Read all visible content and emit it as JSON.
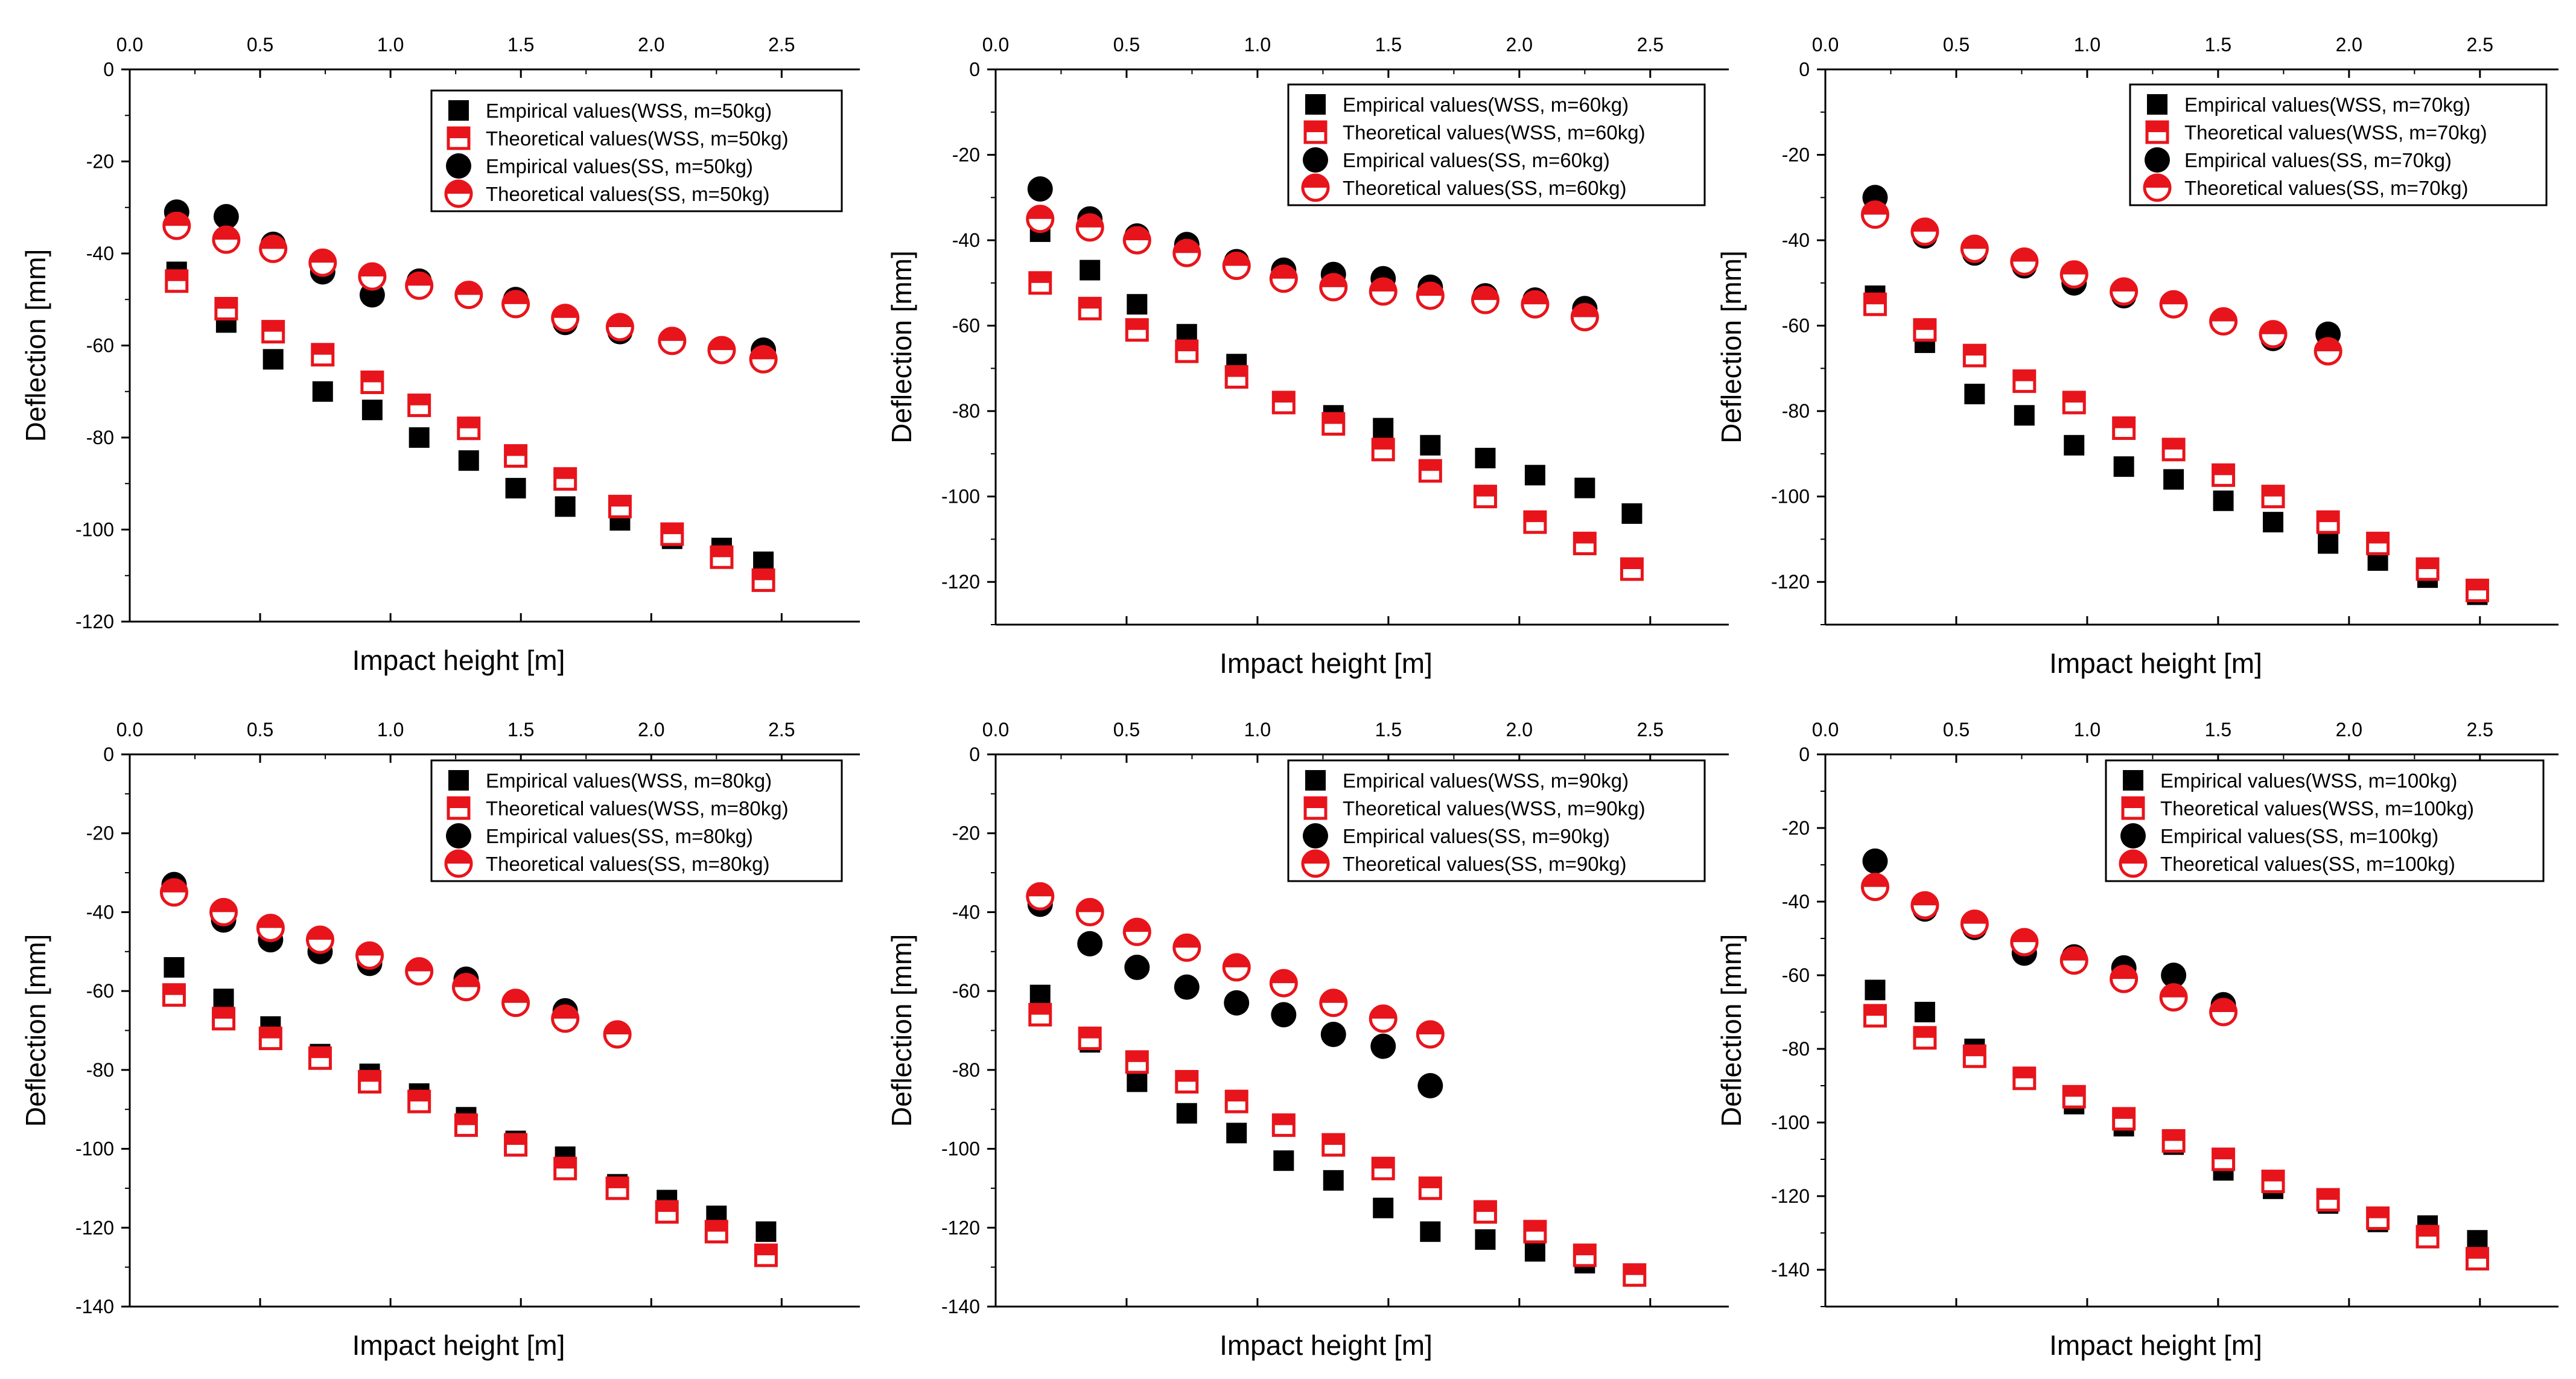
{
  "colors": {
    "empirical": "#000000",
    "theoretical": "#e8141b",
    "axis": "#000000",
    "background": "#ffffff"
  },
  "chart_data": [
    {
      "type": "scatter",
      "title": "",
      "xlabel": "Impact height [m]",
      "ylabel": "Deflection [mm]",
      "xlim": [
        0,
        2.8
      ],
      "ylim": [
        -120,
        0
      ],
      "xticks": [
        "0.0",
        "0.5",
        "1.0",
        "1.5",
        "2.0",
        "2.5"
      ],
      "yticks": [
        "0",
        "-20",
        "-40",
        "-60",
        "-80",
        "-100",
        "-120"
      ],
      "legend_position": "top-right",
      "series": [
        {
          "name": "Empirical values(WSS, m=50kg)",
          "marker": "square-filled",
          "x": [
            0.18,
            0.37,
            0.55,
            0.74,
            0.93,
            1.11,
            1.3,
            1.48,
            1.67,
            1.88,
            2.08,
            2.27,
            2.43
          ],
          "y": [
            -44,
            -55,
            -63,
            -70,
            -74,
            -80,
            -85,
            -91,
            -95,
            -98,
            -102,
            -104,
            -107
          ]
        },
        {
          "name": "Theoretical values(WSS, m=50kg)",
          "marker": "square-half",
          "x": [
            0.18,
            0.37,
            0.55,
            0.74,
            0.93,
            1.11,
            1.3,
            1.48,
            1.67,
            1.88,
            2.08,
            2.27,
            2.43
          ],
          "y": [
            -46,
            -52,
            -57,
            -62,
            -68,
            -73,
            -78,
            -84,
            -89,
            -95,
            -101,
            -106,
            -111
          ]
        },
        {
          "name": "Empirical values(SS, m=50kg)",
          "marker": "circle-filled",
          "x": [
            0.18,
            0.37,
            0.55,
            0.74,
            0.93,
            1.11,
            1.3,
            1.48,
            1.67,
            1.88,
            2.08,
            2.27,
            2.43
          ],
          "y": [
            -31,
            -32,
            -38,
            -44,
            -49,
            -46,
            -49,
            -50,
            -55,
            -57,
            -59,
            -61,
            -61
          ]
        },
        {
          "name": "Theoretical values(SS, m=50kg)",
          "marker": "circle-half",
          "x": [
            0.18,
            0.37,
            0.55,
            0.74,
            0.93,
            1.11,
            1.3,
            1.48,
            1.67,
            1.88,
            2.08,
            2.27,
            2.43
          ],
          "y": [
            -34,
            -37,
            -39,
            -42,
            -45,
            -47,
            -49,
            -51,
            -54,
            -56,
            -59,
            -61,
            -63
          ]
        }
      ]
    },
    {
      "type": "scatter",
      "title": "",
      "xlabel": "Impact height [m]",
      "ylabel": "Deflection [mm]",
      "xlim": [
        0,
        2.8
      ],
      "ylim": [
        -130,
        0
      ],
      "xticks": [
        "0.0",
        "0.5",
        "1.0",
        "1.5",
        "2.0",
        "2.5"
      ],
      "yticks": [
        "0",
        "-20",
        "-40",
        "-60",
        "-80",
        "-100",
        "-120"
      ],
      "legend_position": "top-right",
      "series": [
        {
          "name": "Empirical values(WSS, m=60kg)",
          "marker": "square-filled",
          "x": [
            0.17,
            0.36,
            0.54,
            0.73,
            0.92,
            1.1,
            1.29,
            1.48,
            1.66,
            1.87,
            2.06,
            2.25,
            2.43
          ],
          "y": [
            -38,
            -47,
            -55,
            -62,
            -69,
            -78,
            -81,
            -84,
            -88,
            -91,
            -95,
            -98,
            -104
          ]
        },
        {
          "name": "Theoretical values(WSS, m=60kg)",
          "marker": "square-half",
          "x": [
            0.17,
            0.36,
            0.54,
            0.73,
            0.92,
            1.1,
            1.29,
            1.48,
            1.66,
            1.87,
            2.06,
            2.25,
            2.43
          ],
          "y": [
            -50,
            -56,
            -61,
            -66,
            -72,
            -78,
            -83,
            -89,
            -94,
            -100,
            -106,
            -111,
            -117
          ]
        },
        {
          "name": "Empirical values(SS, m=60kg)",
          "marker": "circle-filled",
          "x": [
            0.17,
            0.36,
            0.54,
            0.73,
            0.92,
            1.1,
            1.29,
            1.48,
            1.66,
            1.87,
            2.06,
            2.25
          ],
          "y": [
            -28,
            -35,
            -39,
            -41,
            -45,
            -47,
            -48,
            -49,
            -51,
            -53,
            -54,
            -56
          ]
        },
        {
          "name": "Theoretical values(SS, m=60kg)",
          "marker": "circle-half",
          "x": [
            0.17,
            0.36,
            0.54,
            0.73,
            0.92,
            1.1,
            1.29,
            1.48,
            1.66,
            1.87,
            2.06,
            2.25
          ],
          "y": [
            -35,
            -37,
            -40,
            -43,
            -46,
            -49,
            -51,
            -52,
            -53,
            -54,
            -55,
            -58
          ]
        }
      ]
    },
    {
      "type": "scatter",
      "title": "",
      "xlabel": "Impact height [m]",
      "ylabel": "Deflection [mm]",
      "xlim": [
        0,
        2.8
      ],
      "ylim": [
        -130,
        0
      ],
      "xticks": [
        "0.0",
        "0.5",
        "1.0",
        "1.5",
        "2.0",
        "2.5"
      ],
      "yticks": [
        "0",
        "-20",
        "-40",
        "-60",
        "-80",
        "-100",
        "-120"
      ],
      "legend_position": "top-right",
      "series": [
        {
          "name": "Empirical values(WSS, m=70kg)",
          "marker": "square-filled",
          "x": [
            0.19,
            0.38,
            0.57,
            0.76,
            0.95,
            1.14,
            1.33,
            1.52,
            1.71,
            1.92,
            2.11,
            2.3,
            2.49
          ],
          "y": [
            -53,
            -64,
            -76,
            -81,
            -88,
            -93,
            -96,
            -101,
            -106,
            -111,
            -115,
            -119,
            -123
          ]
        },
        {
          "name": "Theoretical values(WSS, m=70kg)",
          "marker": "square-half",
          "x": [
            0.19,
            0.38,
            0.57,
            0.76,
            0.95,
            1.14,
            1.33,
            1.52,
            1.71,
            1.92,
            2.11,
            2.3,
            2.49
          ],
          "y": [
            -55,
            -61,
            -67,
            -73,
            -78,
            -84,
            -89,
            -95,
            -100,
            -106,
            -111,
            -117,
            -122
          ]
        },
        {
          "name": "Empirical values(SS, m=70kg)",
          "marker": "circle-filled",
          "x": [
            0.19,
            0.38,
            0.57,
            0.76,
            0.95,
            1.14,
            1.33,
            1.52,
            1.71,
            1.92
          ],
          "y": [
            -30,
            -39,
            -43,
            -46,
            -50,
            -53,
            -55,
            -59,
            -63,
            -62
          ]
        },
        {
          "name": "Theoretical values(SS, m=70kg)",
          "marker": "circle-half",
          "x": [
            0.19,
            0.38,
            0.57,
            0.76,
            0.95,
            1.14,
            1.33,
            1.52,
            1.71,
            1.92
          ],
          "y": [
            -34,
            -38,
            -42,
            -45,
            -48,
            -52,
            -55,
            -59,
            -62,
            -66
          ]
        }
      ]
    },
    {
      "type": "scatter",
      "title": "",
      "xlabel": "Impact height [m]",
      "ylabel": "Deflection [mm]",
      "xlim": [
        0,
        2.8
      ],
      "ylim": [
        -140,
        0
      ],
      "xticks": [
        "0.0",
        "0.5",
        "1.0",
        "1.5",
        "2.0",
        "2.5"
      ],
      "yticks": [
        "0",
        "-20",
        "-40",
        "-60",
        "-80",
        "-100",
        "-120",
        "-140"
      ],
      "legend_position": "top-right",
      "series": [
        {
          "name": "Empirical values(WSS, m=80kg)",
          "marker": "square-filled",
          "x": [
            0.17,
            0.36,
            0.54,
            0.73,
            0.92,
            1.11,
            1.29,
            1.48,
            1.67,
            1.87,
            2.06,
            2.25,
            2.44
          ],
          "y": [
            -54,
            -62,
            -69,
            -76,
            -81,
            -86,
            -92,
            -98,
            -102,
            -109,
            -113,
            -117,
            -121
          ]
        },
        {
          "name": "Theoretical values(WSS, m=80kg)",
          "marker": "square-half",
          "x": [
            0.17,
            0.36,
            0.54,
            0.73,
            0.92,
            1.11,
            1.29,
            1.48,
            1.67,
            1.87,
            2.06,
            2.25,
            2.44
          ],
          "y": [
            -61,
            -67,
            -72,
            -77,
            -83,
            -88,
            -94,
            -99,
            -105,
            -110,
            -116,
            -121,
            -127
          ]
        },
        {
          "name": "Empirical values(SS, m=80kg)",
          "marker": "circle-filled",
          "x": [
            0.17,
            0.36,
            0.54,
            0.73,
            0.92,
            1.11,
            1.29,
            1.48,
            1.67,
            1.87
          ],
          "y": [
            -33,
            -42,
            -47,
            -50,
            -53,
            -55,
            -57,
            -63,
            -65,
            -71
          ]
        },
        {
          "name": "Theoretical values(SS, m=80kg)",
          "marker": "circle-half",
          "x": [
            0.17,
            0.36,
            0.54,
            0.73,
            0.92,
            1.11,
            1.29,
            1.48,
            1.67,
            1.87
          ],
          "y": [
            -35,
            -40,
            -44,
            -47,
            -51,
            -55,
            -59,
            -63,
            -67,
            -71
          ]
        }
      ]
    },
    {
      "type": "scatter",
      "title": "",
      "xlabel": "Impact height [m]",
      "ylabel": "Deflection [mm]",
      "xlim": [
        0,
        2.8
      ],
      "ylim": [
        -140,
        0
      ],
      "xticks": [
        "0.0",
        "0.5",
        "1.0",
        "1.5",
        "2.0",
        "2.5"
      ],
      "yticks": [
        "0",
        "-20",
        "-40",
        "-60",
        "-80",
        "-100",
        "-120",
        "-140"
      ],
      "legend_position": "top-right",
      "series": [
        {
          "name": "Empirical values(WSS, m=90kg)",
          "marker": "square-filled",
          "x": [
            0.17,
            0.36,
            0.54,
            0.73,
            0.92,
            1.1,
            1.29,
            1.48,
            1.66,
            1.87,
            2.06,
            2.25,
            2.44
          ],
          "y": [
            -61,
            -73,
            -83,
            -91,
            -96,
            -103,
            -108,
            -115,
            -121,
            -123,
            -126,
            -129,
            -132
          ]
        },
        {
          "name": "Theoretical values(WSS, m=90kg)",
          "marker": "square-half",
          "x": [
            0.17,
            0.36,
            0.54,
            0.73,
            0.92,
            1.1,
            1.29,
            1.48,
            1.66,
            1.87,
            2.06,
            2.25,
            2.44
          ],
          "y": [
            -66,
            -72,
            -78,
            -83,
            -88,
            -94,
            -99,
            -105,
            -110,
            -116,
            -121,
            -127,
            -132
          ]
        },
        {
          "name": "Empirical values(SS, m=90kg)",
          "marker": "circle-filled",
          "x": [
            0.17,
            0.36,
            0.54,
            0.73,
            0.92,
            1.1,
            1.29,
            1.48,
            1.66
          ],
          "y": [
            -38,
            -48,
            -54,
            -59,
            -63,
            -66,
            -71,
            -74,
            -84
          ]
        },
        {
          "name": "Theoretical values(SS, m=90kg)",
          "marker": "circle-half",
          "x": [
            0.17,
            0.36,
            0.54,
            0.73,
            0.92,
            1.1,
            1.29,
            1.48,
            1.66
          ],
          "y": [
            -36,
            -40,
            -45,
            -49,
            -54,
            -58,
            -63,
            -67,
            -71
          ]
        }
      ]
    },
    {
      "type": "scatter",
      "title": "",
      "xlabel": "Impact height [m]",
      "ylabel": "Deflection [mm]",
      "xlim": [
        0,
        2.8
      ],
      "ylim": [
        -150,
        0
      ],
      "xticks": [
        "0.0",
        "0.5",
        "1.0",
        "1.5",
        "2.0",
        "2.5"
      ],
      "yticks": [
        "0",
        "-20",
        "-40",
        "-60",
        "-80",
        "-100",
        "-120",
        "-140"
      ],
      "legend_position": "top-right",
      "series": [
        {
          "name": "Empirical values(WSS, m=100kg)",
          "marker": "square-filled",
          "x": [
            0.19,
            0.38,
            0.57,
            0.76,
            0.95,
            1.14,
            1.33,
            1.52,
            1.71,
            1.92,
            2.11,
            2.3,
            2.49
          ],
          "y": [
            -64,
            -70,
            -80,
            -88,
            -95,
            -101,
            -106,
            -113,
            -118,
            -122,
            -127,
            -128,
            -132
          ]
        },
        {
          "name": "Theoretical values(WSS, m=100kg)",
          "marker": "square-half",
          "x": [
            0.19,
            0.38,
            0.57,
            0.76,
            0.95,
            1.14,
            1.33,
            1.52,
            1.71,
            1.92,
            2.11,
            2.3,
            2.49
          ],
          "y": [
            -71,
            -77,
            -82,
            -88,
            -93,
            -99,
            -105,
            -110,
            -116,
            -121,
            -126,
            -131,
            -137
          ]
        },
        {
          "name": "Empirical values(SS, m=100kg)",
          "marker": "circle-filled",
          "x": [
            0.19,
            0.38,
            0.57,
            0.76,
            0.95,
            1.14,
            1.33,
            1.52
          ],
          "y": [
            -29,
            -42,
            -47,
            -54,
            -55,
            -58,
            -60,
            -68
          ]
        },
        {
          "name": "Theoretical values(SS, m=100kg)",
          "marker": "circle-half",
          "x": [
            0.19,
            0.38,
            0.57,
            0.76,
            0.95,
            1.14,
            1.33,
            1.52
          ],
          "y": [
            -36,
            -41,
            -46,
            -51,
            -56,
            -61,
            -66,
            -70
          ]
        }
      ]
    }
  ]
}
